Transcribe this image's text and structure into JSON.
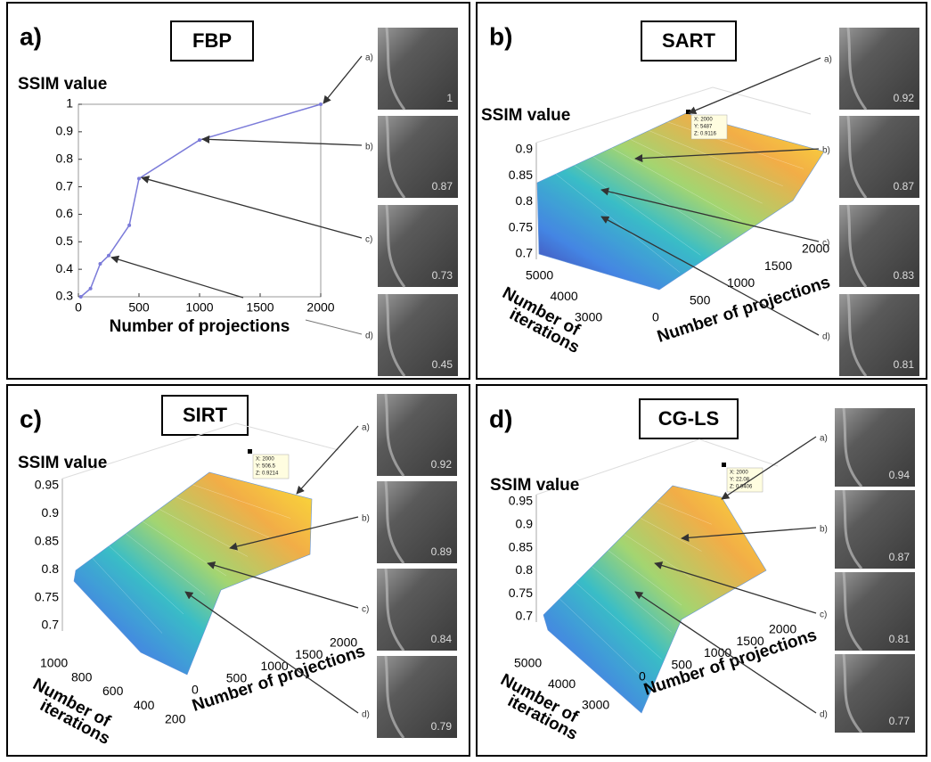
{
  "chart_data": {
    "type": "line",
    "ylabel": "SSIM value",
    "xlabel": "Number of projections",
    "x": [
      20,
      100,
      180,
      250,
      420,
      500,
      1000,
      2000
    ],
    "values": [
      0.3,
      0.33,
      0.42,
      0.45,
      0.56,
      0.73,
      0.87,
      1
    ],
    "color": "#7b7bd9",
    "xlim": [
      0,
      2000
    ],
    "ylim": [
      0.3,
      1
    ],
    "xticks": [
      0,
      500,
      1000,
      1500,
      2000
    ],
    "yticks": [
      0.3,
      0.4,
      0.5,
      0.6,
      0.7,
      0.8,
      0.9,
      1
    ]
  },
  "panels": [
    {
      "label": "a)",
      "title": "FBP",
      "arrow_labels": [
        "a)",
        "b)",
        "c)",
        "d)"
      ],
      "thumbnails": [
        1,
        0.87,
        0.73,
        0.45
      ]
    },
    {
      "label": "b)",
      "title": "SART",
      "zlabel": "SSIM value",
      "zticks": [
        0.7,
        0.75,
        0.8,
        0.85,
        0.9
      ],
      "iteration_label": [
        "Number of",
        "iterations"
      ],
      "iteration_ticks": [
        5000,
        4000,
        3000
      ],
      "projection_label": "Number of projections",
      "projection_ticks": [
        0,
        500,
        1000,
        1500,
        2000
      ],
      "datatip": [
        "X: 2000",
        "Y: 5487",
        "Z: 0.9116"
      ],
      "arrow_labels": [
        "a)",
        "b)",
        "c)",
        "d)"
      ],
      "thumbnails": [
        0.92,
        0.87,
        0.83,
        0.81
      ]
    },
    {
      "label": "c)",
      "title": "SIRT",
      "zlabel": "SSIM value",
      "zticks": [
        0.7,
        0.75,
        0.8,
        0.85,
        0.9,
        0.95
      ],
      "iteration_label": [
        "Number of",
        "iterations"
      ],
      "iteration_ticks": [
        1000,
        800,
        600,
        400,
        200
      ],
      "projection_label": "Number of projections",
      "projection_ticks": [
        0,
        500,
        1000,
        1500,
        2000
      ],
      "datatip": [
        "X: 2000",
        "Y: 506.5",
        "Z: 0.9214"
      ],
      "arrow_labels": [
        "a)",
        "b)",
        "c)",
        "d)"
      ],
      "thumbnails": [
        0.92,
        0.89,
        0.84,
        0.79
      ]
    },
    {
      "label": "d)",
      "title": "CG-LS",
      "zlabel": "SSIM value",
      "zticks": [
        0.7,
        0.75,
        0.8,
        0.85,
        0.9,
        0.95
      ],
      "iteration_label": [
        "Number of",
        "iterations"
      ],
      "iteration_ticks": [
        5000,
        4000,
        3000
      ],
      "projection_label": "Number of projections",
      "projection_ticks": [
        0,
        500,
        1000,
        1500,
        2000
      ],
      "datatip": [
        "X: 2000",
        "Y: 22.08",
        "Z: 0.9406"
      ],
      "arrow_labels": [
        "a)",
        "b)",
        "c)",
        "d)"
      ],
      "thumbnails": [
        0.94,
        0.87,
        0.81,
        0.77
      ]
    }
  ]
}
